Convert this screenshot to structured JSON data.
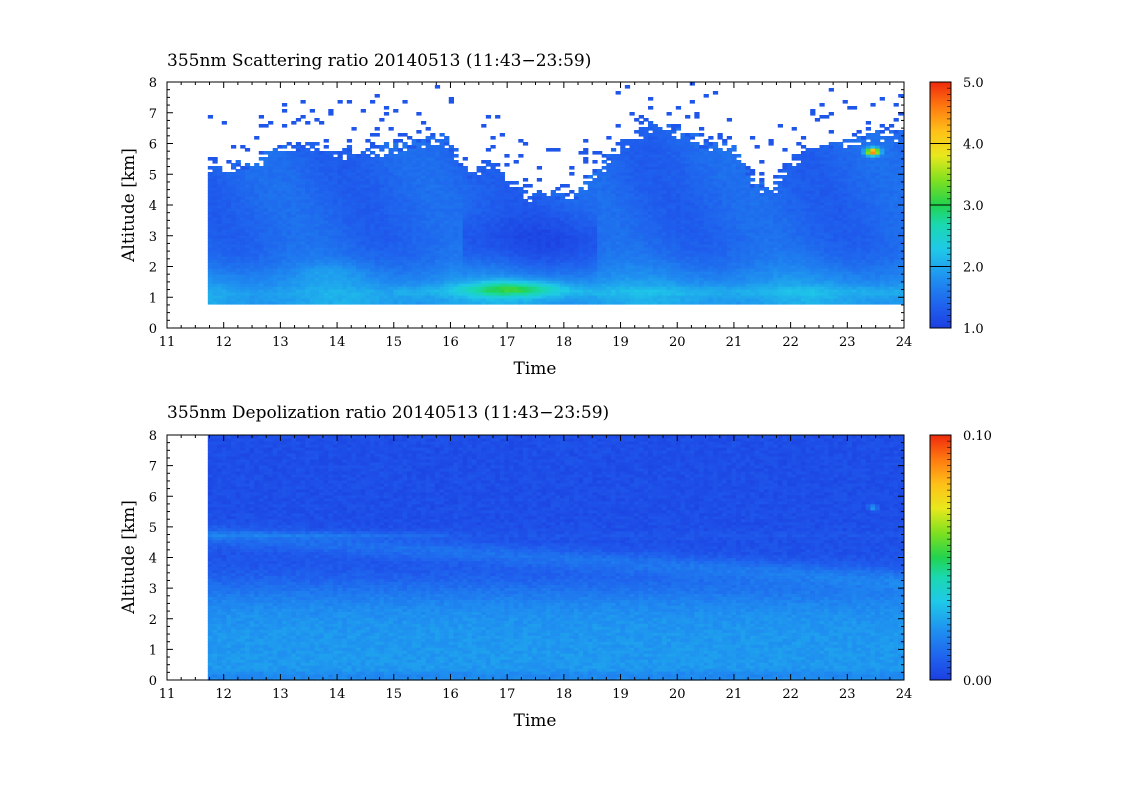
{
  "chart_data": [
    {
      "type": "heatmap",
      "title": "355nm Scattering ratio  20140513 (11:43−23:59)",
      "xlabel": "Time",
      "ylabel": "Altitude [km]",
      "xlim": [
        11,
        24
      ],
      "ylim": [
        0,
        8
      ],
      "xticks": [
        "11",
        "12",
        "13",
        "14",
        "15",
        "16",
        "17",
        "18",
        "19",
        "20",
        "21",
        "22",
        "23",
        "24"
      ],
      "yticks": [
        "0",
        "1",
        "2",
        "3",
        "4",
        "5",
        "6",
        "7",
        "8"
      ],
      "data_start_time": 11.72,
      "data_end_time": 23.98,
      "colorbar": {
        "min": 1.0,
        "max": 5.0,
        "tick_labels": [
          "1.0",
          "2.0",
          "3.0",
          "4.0",
          "5.0"
        ]
      },
      "field": {
        "background_ratio": 1.4,
        "missing_below_km": 0.75,
        "boundary_layer": {
          "top_km": 1.8,
          "ratio": 2.0
        },
        "aerosol_layer": {
          "time_range": [
            16.0,
            18.2
          ],
          "altitude_range": [
            1.0,
            1.6
          ],
          "peak_ratio": 3.0
        },
        "cloud_patch": {
          "time": 23.45,
          "altitude_km": 5.75,
          "peak_ratio": 4.8
        },
        "signal_top_km": [
          [
            11.72,
            5.2
          ],
          [
            12.5,
            5.3
          ],
          [
            13.0,
            5.8
          ],
          [
            13.5,
            5.9
          ],
          [
            14.0,
            5.6
          ],
          [
            14.5,
            5.8
          ],
          [
            15.0,
            5.8
          ],
          [
            15.5,
            6.0
          ],
          [
            15.9,
            6.2
          ],
          [
            16.3,
            5.0
          ],
          [
            16.8,
            5.3
          ],
          [
            17.3,
            4.3
          ],
          [
            17.8,
            4.4
          ],
          [
            18.2,
            4.3
          ],
          [
            18.6,
            5.0
          ],
          [
            19.0,
            6.0
          ],
          [
            19.5,
            6.5
          ],
          [
            20.0,
            6.4
          ],
          [
            20.5,
            6.0
          ],
          [
            21.0,
            5.8
          ],
          [
            21.4,
            4.6
          ],
          [
            21.7,
            4.5
          ],
          [
            22.0,
            5.4
          ],
          [
            22.5,
            5.9
          ],
          [
            23.0,
            6.1
          ],
          [
            23.5,
            6.2
          ],
          [
            23.98,
            6.3
          ]
        ]
      }
    },
    {
      "type": "heatmap",
      "title": "355nm Depolization ratio  20140513 (11:43−23:59)",
      "xlabel": "Time",
      "ylabel": "Altitude [km]",
      "xlim": [
        11,
        24
      ],
      "ylim": [
        0,
        8
      ],
      "xticks": [
        "11",
        "12",
        "13",
        "14",
        "15",
        "16",
        "17",
        "18",
        "19",
        "20",
        "21",
        "22",
        "23",
        "24"
      ],
      "yticks": [
        "0",
        "1",
        "2",
        "3",
        "4",
        "5",
        "6",
        "7",
        "8"
      ],
      "data_start_time": 11.72,
      "data_end_time": 23.98,
      "colorbar": {
        "min": 0.0,
        "max": 0.1,
        "tick_labels": [
          "0.00",
          "0.10"
        ]
      },
      "field": {
        "background_ratio": 0.004,
        "low_layer": {
          "top_km": 3.0,
          "ratio": 0.022
        },
        "elevated_layer": {
          "altitude_range": [
            3.3,
            4.9
          ],
          "ratio": 0.015
        },
        "small_patch": {
          "time": 23.45,
          "altitude_km": 5.65,
          "ratio": 0.025
        }
      }
    }
  ]
}
